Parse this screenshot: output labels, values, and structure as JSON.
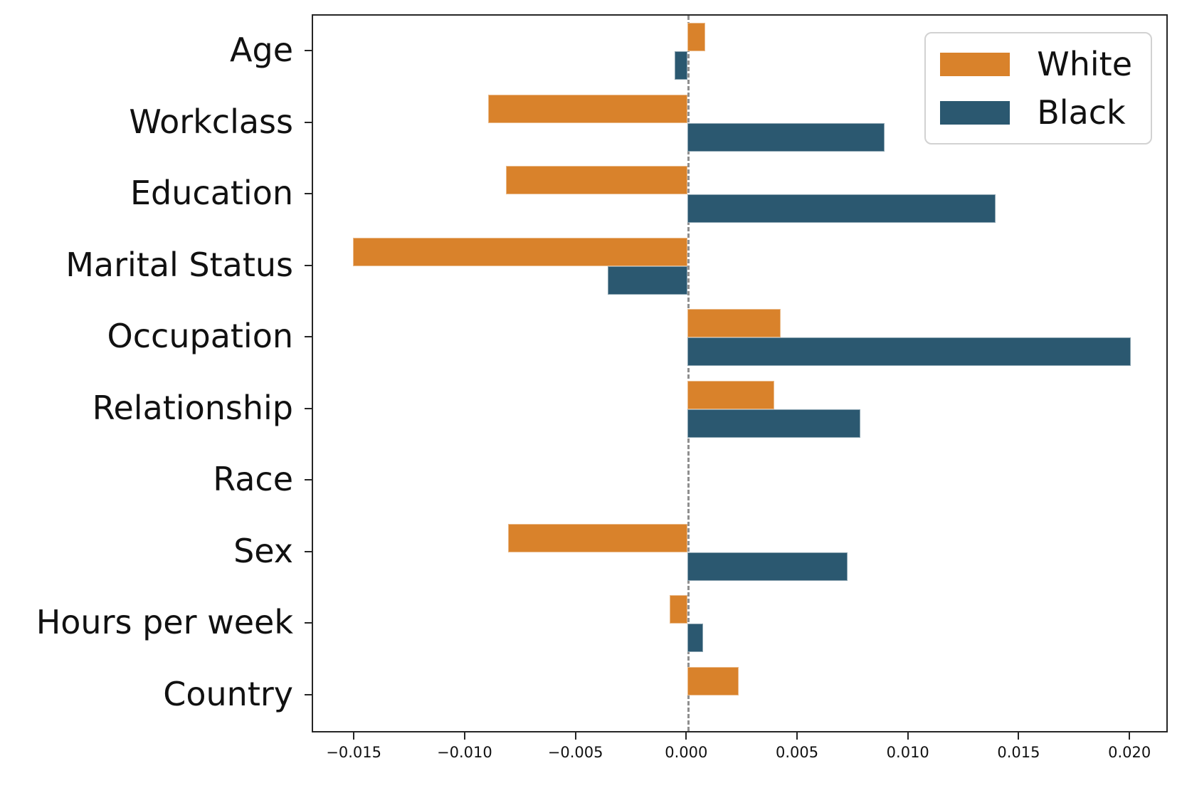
{
  "chart_data": {
    "type": "bar",
    "orientation": "horizontal",
    "title": "",
    "xlabel": "",
    "ylabel": "",
    "grid": false,
    "legend_position": "upper right",
    "categories": [
      "Age",
      "Workclass",
      "Education",
      "Marital Status",
      "Occupation",
      "Relationship",
      "Race",
      "Sex",
      "Hours per week",
      "Country"
    ],
    "series": [
      {
        "name": "White",
        "color": "#d9822b",
        "values": [
          0.0008,
          -0.009,
          -0.0082,
          -0.0151,
          0.0042,
          0.0039,
          0.0,
          -0.0081,
          -0.0008,
          0.0023
        ]
      },
      {
        "name": "Black",
        "color": "#2b5870",
        "values": [
          -0.0006,
          0.0089,
          0.0139,
          -0.0036,
          0.02,
          0.0078,
          0.0,
          0.0072,
          0.0007,
          0.0
        ]
      }
    ],
    "x_ticks": [
      -0.015,
      -0.01,
      -0.005,
      0.0,
      0.005,
      0.01,
      0.015,
      0.02
    ],
    "x_tick_labels": [
      "−0.015",
      "−0.010",
      "−0.005",
      "0.000",
      "0.005",
      "0.010",
      "0.015",
      "0.020"
    ],
    "xlim": [
      -0.0169,
      0.0216
    ],
    "zero_line": {
      "style": "dashed",
      "color": "#8f8f8f",
      "x": 0.0
    }
  }
}
